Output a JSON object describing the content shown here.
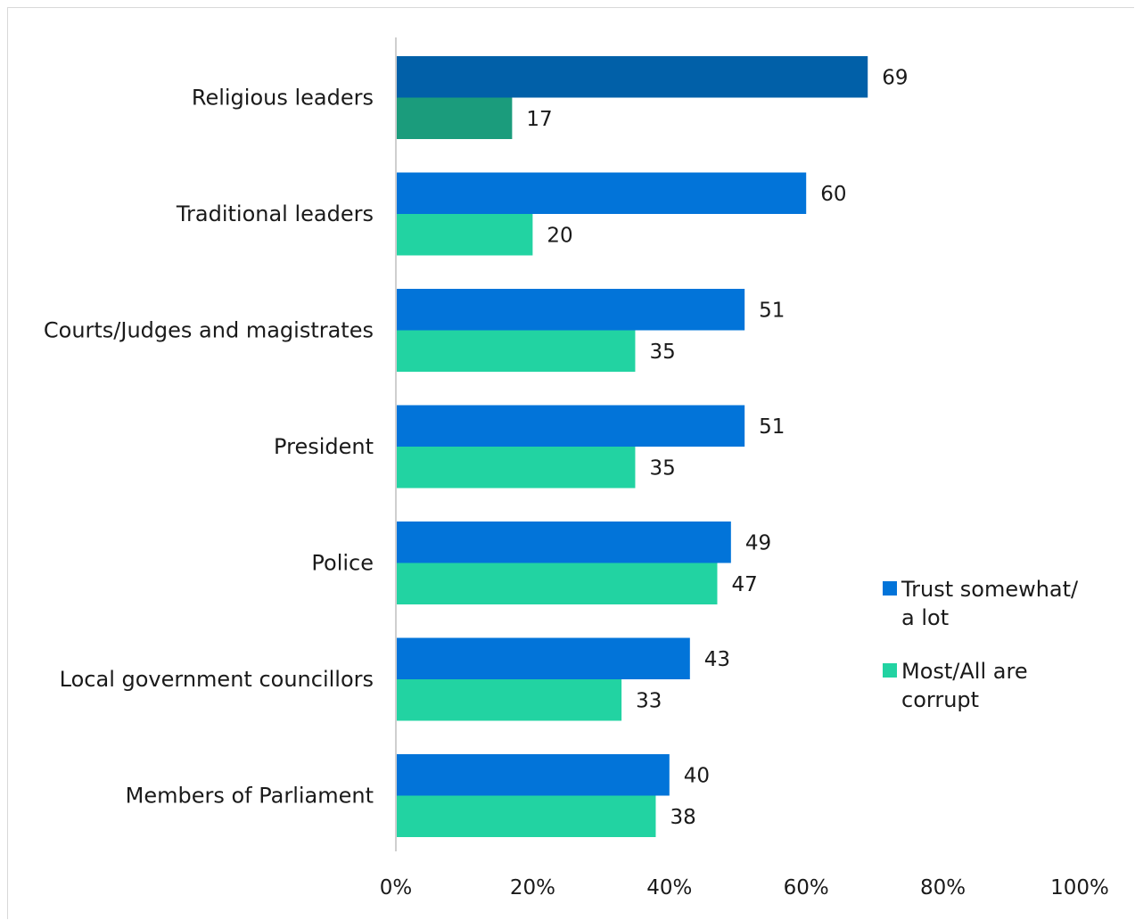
{
  "chart_data": {
    "type": "bar",
    "orientation": "horizontal",
    "categories": [
      "Religious leaders",
      "Traditional leaders",
      "Courts/Judges and magistrates",
      "President",
      "Police",
      "Local government councillors",
      "Members of Parliament"
    ],
    "series": [
      {
        "name": "Trust somewhat/ a lot",
        "legend_lines": [
          "Trust somewhat/",
          "a lot"
        ],
        "color": "#0274d9",
        "highlight_color": "#0160a8",
        "values": [
          69,
          60,
          51,
          51,
          49,
          43,
          40
        ]
      },
      {
        "name": "Most/All are corrupt",
        "legend_lines": [
          "Most/All are",
          "corrupt"
        ],
        "color": "#22d3a2",
        "highlight_color": "#1b9c7c",
        "values": [
          17,
          20,
          35,
          35,
          47,
          33,
          38
        ]
      }
    ],
    "highlighted_category_index": 0,
    "xlim": [
      0,
      100
    ],
    "x_ticks": [
      0,
      20,
      40,
      60,
      80,
      100
    ],
    "x_tick_labels": [
      "0%",
      "20%",
      "40%",
      "60%",
      "80%",
      "100%"
    ],
    "grid": false,
    "legend_position": "right",
    "title": "",
    "xlabel": "",
    "ylabel": ""
  }
}
